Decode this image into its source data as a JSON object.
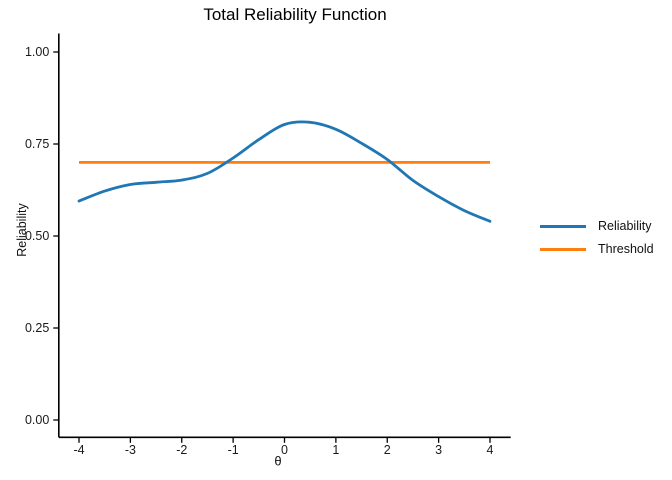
{
  "chart_data": {
    "type": "line",
    "title": "Total Reliability Function",
    "xlabel": "θ",
    "ylabel": "Reliability",
    "xlim": [
      -4.4,
      4.4
    ],
    "ylim": [
      -0.05,
      1.05
    ],
    "x_ticks": [
      -4,
      -3,
      -2,
      -1,
      0,
      1,
      2,
      3,
      4
    ],
    "y_ticks": [
      0.0,
      0.25,
      0.5,
      0.75,
      1.0
    ],
    "y_tick_labels": [
      "0.00",
      "0.25",
      "0.50",
      "0.75",
      "1.00"
    ],
    "grid": false,
    "legend_position": "right",
    "x": [
      -4,
      -3.5,
      -3,
      -2.5,
      -2,
      -1.5,
      -1,
      -0.5,
      0,
      0.5,
      1,
      1.5,
      2,
      2.5,
      3,
      3.5,
      4
    ],
    "series": [
      {
        "name": "Reliability",
        "kind": "curve",
        "color": "#1f77b4",
        "values": [
          0.595,
          0.622,
          0.64,
          0.646,
          0.652,
          0.67,
          0.712,
          0.762,
          0.803,
          0.809,
          0.79,
          0.752,
          0.708,
          0.651,
          0.607,
          0.569,
          0.54
        ]
      },
      {
        "name": "Threshold",
        "kind": "hline",
        "color": "#ff7f0e",
        "value": 0.7,
        "x_start": -4,
        "x_end": 4
      }
    ]
  },
  "legend": {
    "entries": [
      {
        "label": "Reliability",
        "color": "#1f77b4"
      },
      {
        "label": "Threshold",
        "color": "#ff7f0e"
      }
    ]
  },
  "style": {
    "axis_color": "#000000",
    "tick_label_color": "#1a1a1a",
    "curve_width": 2.8,
    "threshold_width": 2.8
  }
}
